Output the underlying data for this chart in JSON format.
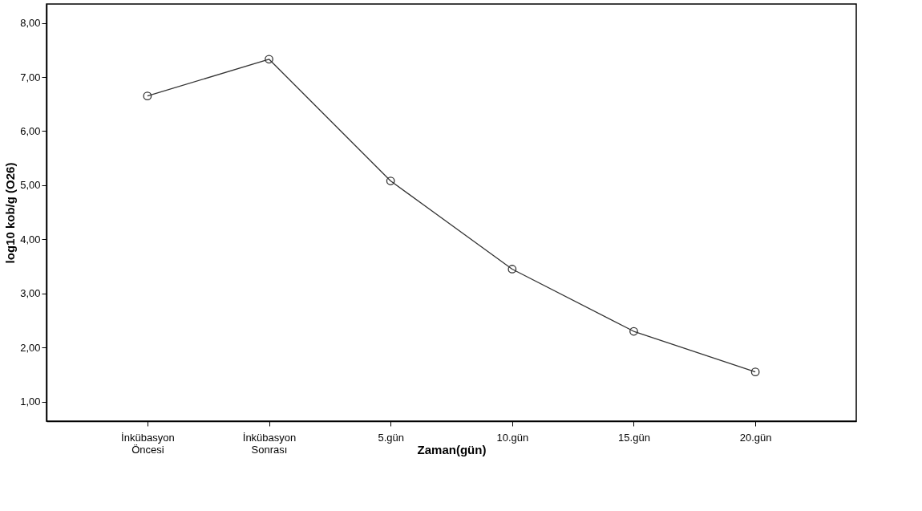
{
  "chart_data": {
    "type": "line",
    "xlabel": "Zaman(gün)",
    "ylabel": "log10 kob/g (O26)",
    "categories": [
      "İnkübasyon Öncesi",
      "İnkübasyon Sonrası",
      "5.gün",
      "10.gün",
      "15.gün",
      "20.gün"
    ],
    "series": [
      {
        "color": "#333333",
        "values": [
          6.65,
          7.33,
          5.08,
          3.45,
          2.3,
          1.55
        ]
      }
    ],
    "ylim": [
      0.64,
      8.35
    ],
    "yticks": [
      {
        "value": 1,
        "label": "1,00"
      },
      {
        "value": 2,
        "label": "2,00"
      },
      {
        "value": 3,
        "label": "3,00"
      },
      {
        "value": 4,
        "label": "4,00"
      },
      {
        "value": 5,
        "label": "5,00"
      },
      {
        "value": 6,
        "label": "6,00"
      },
      {
        "value": 7,
        "label": "7,00"
      },
      {
        "value": 8,
        "label": "8,00"
      }
    ],
    "marker": "circle",
    "line_style": "solid",
    "grid": false
  }
}
